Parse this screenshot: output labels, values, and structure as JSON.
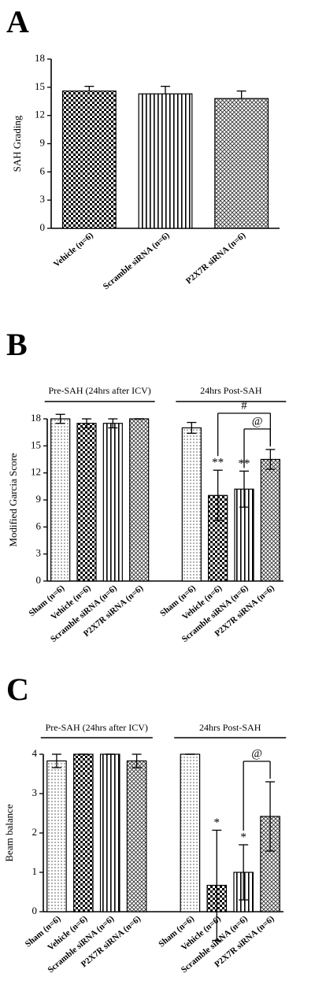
{
  "chart_data": [
    {
      "type": "bar",
      "panel": "A",
      "ylabel": "SAH Grading",
      "categories": [
        "Vehicle  (n=6)",
        "Scramble siRNA  (n=6)",
        "P2X7R siRNA  (n=6)"
      ],
      "values": [
        14.6,
        14.3,
        13.8
      ],
      "errors": [
        0.5,
        0.8,
        0.8
      ],
      "error_direction": "up",
      "patterns": [
        "checker",
        "stripes",
        "crosshatch"
      ],
      "ylim": [
        0,
        18
      ],
      "yticks": [
        0,
        3,
        6,
        9,
        12,
        15,
        18
      ]
    },
    {
      "type": "grouped-bar",
      "panel": "B",
      "ylabel": "Modified Garcia Score",
      "error_direction": "both",
      "patterns": [
        "dots",
        "checker",
        "stripes",
        "crosshatch"
      ],
      "groups": [
        {
          "label": "Pre-SAH (24hrs after ICV)",
          "categories": [
            "Sham (n=6)",
            "Vehicle  (n=6)",
            "Scramble siRNA  (n=6)",
            "P2X7R siRNA  (n=6)"
          ],
          "values": [
            18,
            17.5,
            17.5,
            18
          ],
          "errors": [
            0.5,
            0.5,
            0.5,
            0
          ]
        },
        {
          "label": "24hrs Post-SAH",
          "categories": [
            "Sham (n=6)",
            "Vehicle  (n=6)",
            "Scramble siRNA  (n=6)",
            "P2X7R siRNA  (n=6)"
          ],
          "values": [
            17,
            9.5,
            10.2,
            13.5
          ],
          "errors": [
            0.6,
            2.8,
            2.0,
            1.1
          ],
          "significance": [
            null,
            "**",
            "**",
            null
          ],
          "brackets": [
            {
              "text": "#",
              "from": 1,
              "to": 3
            },
            {
              "text": "@",
              "from": 2,
              "to": 3
            }
          ]
        }
      ],
      "ylim": [
        0,
        18
      ],
      "yticks": [
        0,
        3,
        6,
        9,
        12,
        15,
        18
      ]
    },
    {
      "type": "grouped-bar",
      "panel": "C",
      "ylabel": "Beam balance",
      "error_direction": "both",
      "patterns": [
        "dots",
        "checker",
        "stripes",
        "crosshatch"
      ],
      "groups": [
        {
          "label": "Pre-SAH (24hrs after ICV)",
          "categories": [
            "Sham (n=6)",
            "Vehicle  (n=6)",
            "Scramble siRNA  (n=6)",
            "P2X7R siRNA  (n=6)"
          ],
          "values": [
            3.83,
            4,
            4,
            3.83
          ],
          "errors": [
            0.17,
            0,
            0,
            0.17
          ]
        },
        {
          "label": "24hrs Post-SAH",
          "categories": [
            "Sham (n=6)",
            "Vehicle  (n=6)",
            "Scramble siRNA  (n=6)",
            "P2X7R siRNA  (n=6)"
          ],
          "values": [
            4,
            0.67,
            1.0,
            2.42
          ],
          "errors": [
            0,
            1.4,
            0.7,
            0.88
          ],
          "significance": [
            null,
            "*",
            "*",
            null
          ],
          "brackets": [
            {
              "text": "@",
              "from": 2,
              "to": 3
            }
          ]
        }
      ],
      "ylim": [
        0,
        4
      ],
      "yticks": [
        0,
        1,
        2,
        3,
        4
      ]
    }
  ]
}
